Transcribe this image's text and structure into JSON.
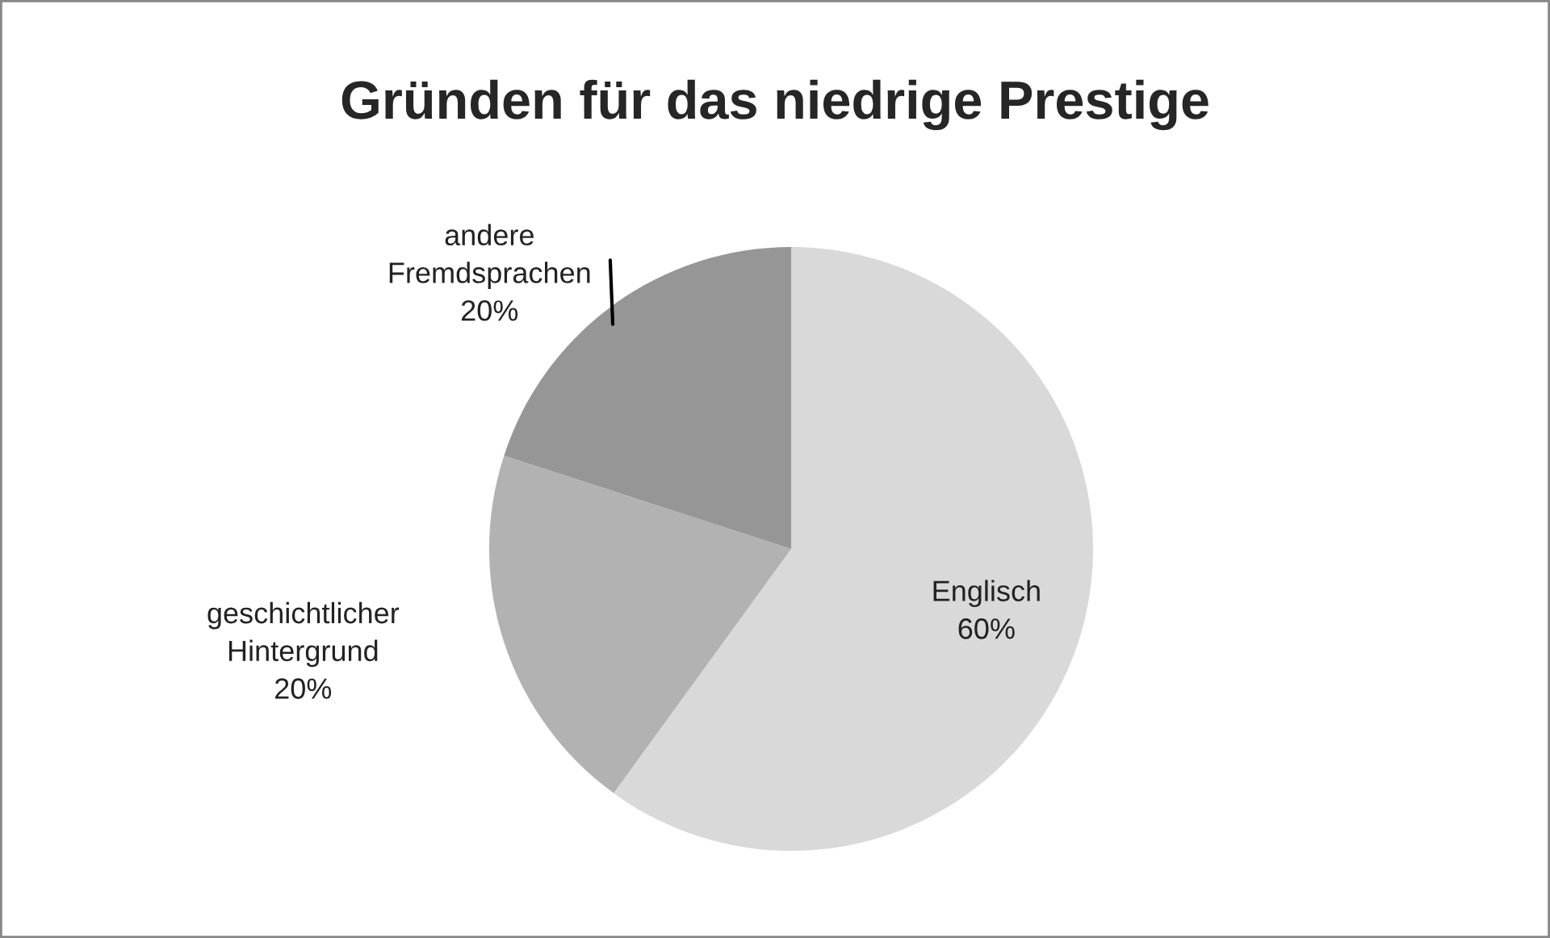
{
  "chart_data": {
    "type": "pie",
    "title": "Gründen für das niedrige Prestige",
    "categories": [
      "Englisch",
      "geschichtlicher Hintergrund",
      "andere Fremdsprachen"
    ],
    "values": [
      60,
      20,
      20
    ],
    "colors": [
      "#d9d9d9",
      "#b2b2b2",
      "#969696"
    ],
    "value_labels": [
      "60%",
      "20%",
      "20%"
    ],
    "legend": false
  }
}
